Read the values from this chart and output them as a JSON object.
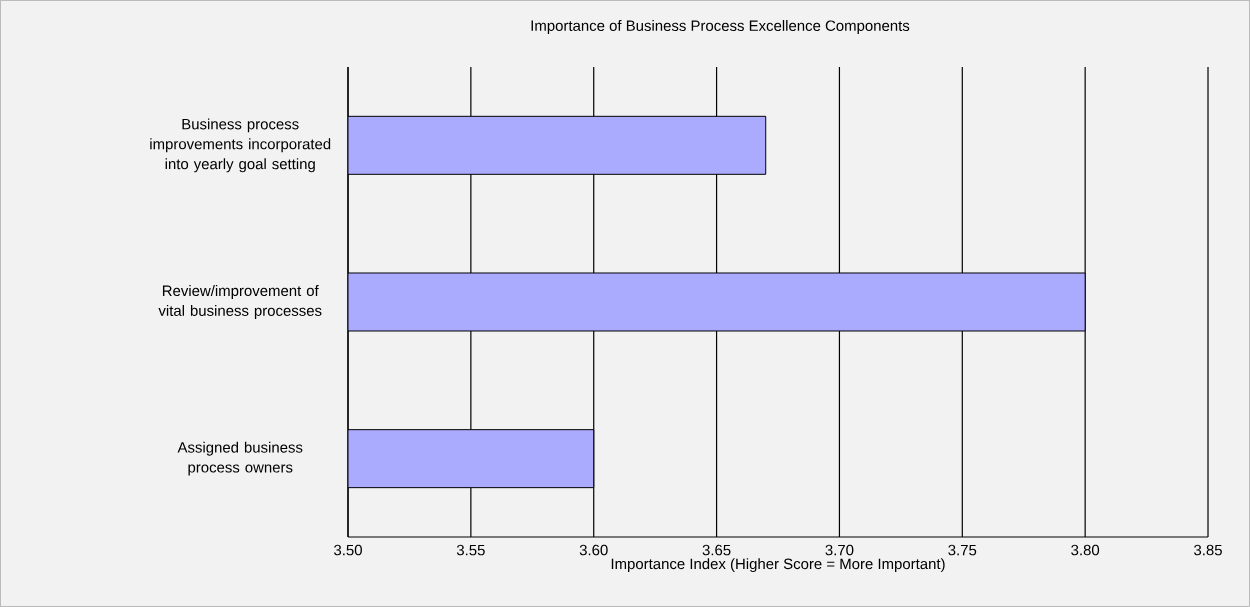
{
  "chart_data": {
    "type": "bar",
    "orientation": "horizontal",
    "title": "Importance of Business Process Excellence Components",
    "xlabel": "Importance Index (Higher Score = More Important)",
    "categories": [
      "Business process improvements incorporated into yearly goal setting",
      "Review/improvement of vital business processes",
      "Assigned business process owners"
    ],
    "values": [
      3.67,
      3.8,
      3.6
    ],
    "color": "#aaaaff",
    "xlim": [
      3.5,
      3.85
    ],
    "xticks": [
      {
        "value": 3.5,
        "label": "3.50"
      },
      {
        "value": 3.55,
        "label": "3.55"
      },
      {
        "value": 3.6,
        "label": "3.60"
      },
      {
        "value": 3.65,
        "label": "3.65"
      },
      {
        "value": 3.7,
        "label": "3.70"
      },
      {
        "value": 3.75,
        "label": "3.75"
      },
      {
        "value": 3.8,
        "label": "3.80"
      },
      {
        "value": 3.85,
        "label": "3.85"
      }
    ],
    "grid": "x"
  }
}
